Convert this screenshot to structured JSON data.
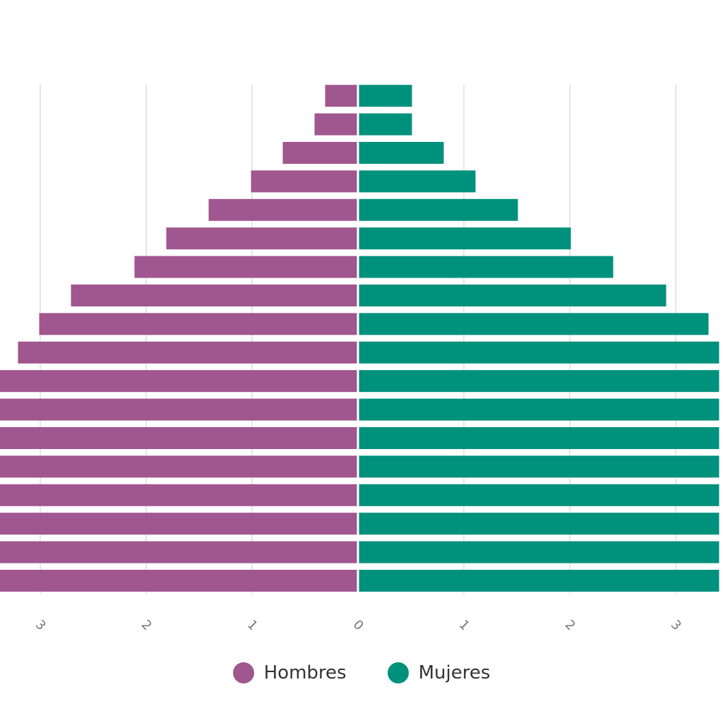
{
  "chart_data": {
    "type": "bar",
    "orientation": "horizontal-diverging",
    "xlim": [
      -3.4,
      3.4
    ],
    "x_ticks": [
      -3,
      -2,
      -1,
      0,
      1,
      2,
      3
    ],
    "x_tick_labels": [
      "3",
      "2",
      "1",
      "0",
      "1",
      "2",
      "3"
    ],
    "grid": true,
    "legend_position": "bottom",
    "series": [
      {
        "name": "Hombres",
        "color": "#a0568f",
        "values": [
          3.4,
          3.4,
          3.4,
          3.4,
          3.4,
          3.4,
          3.4,
          3.4,
          3.2,
          3.0,
          2.7,
          2.1,
          1.8,
          1.4,
          1.0,
          0.7,
          0.4,
          0.3
        ]
      },
      {
        "name": "Mujeres",
        "color": "#00917c",
        "values": [
          3.4,
          3.4,
          3.4,
          3.4,
          3.4,
          3.4,
          3.4,
          3.4,
          3.4,
          3.3,
          2.9,
          2.4,
          2.0,
          1.5,
          1.1,
          0.8,
          0.5,
          0.5
        ]
      }
    ]
  }
}
